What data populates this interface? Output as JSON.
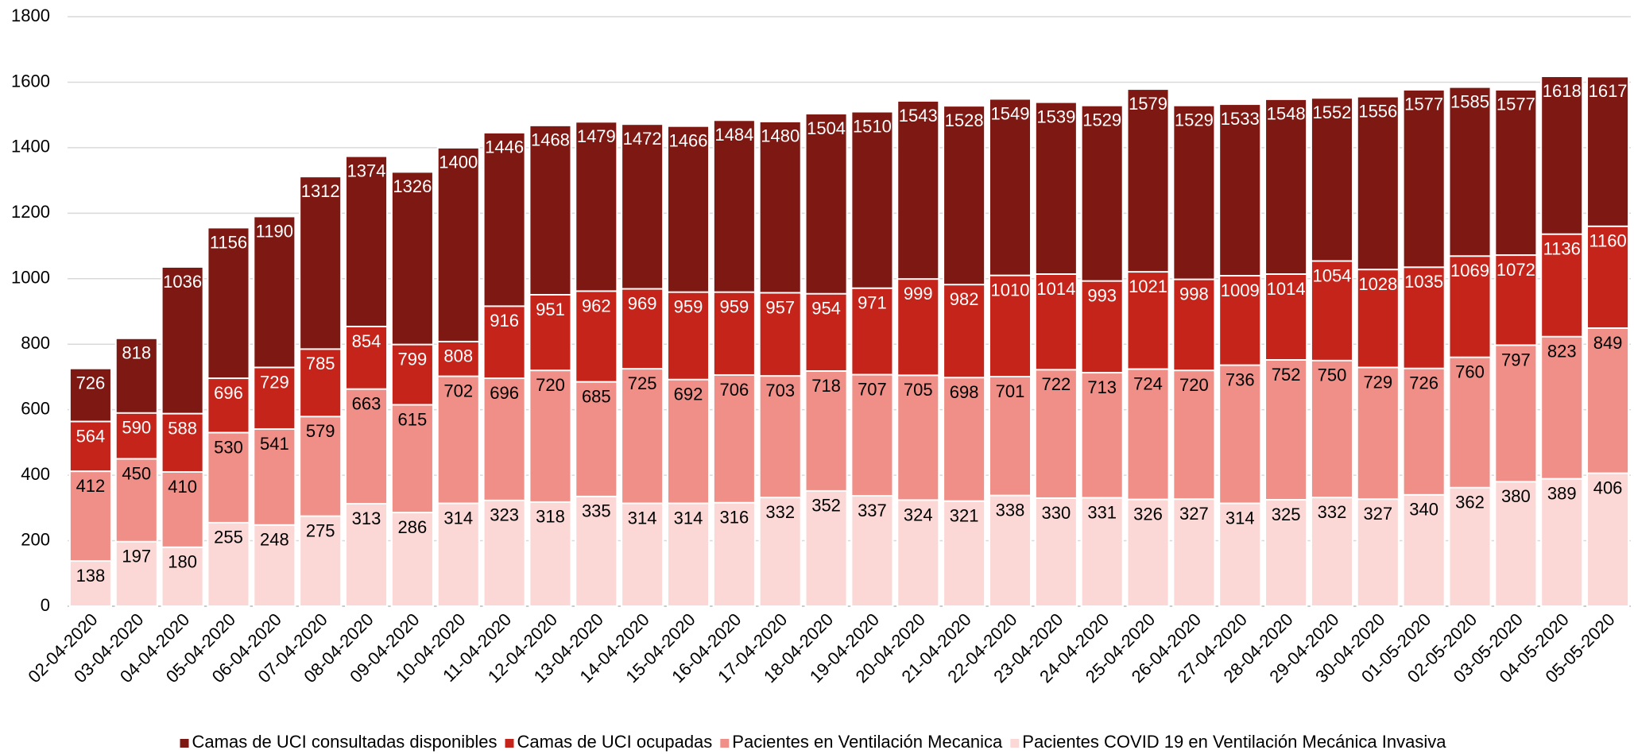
{
  "chart_data": {
    "type": "bar",
    "overlap": true,
    "categories": [
      "02-04-2020",
      "03-04-2020",
      "04-04-2020",
      "05-04-2020",
      "06-04-2020",
      "07-04-2020",
      "08-04-2020",
      "09-04-2020",
      "10-04-2020",
      "11-04-2020",
      "12-04-2020",
      "13-04-2020",
      "14-04-2020",
      "15-04-2020",
      "16-04-2020",
      "17-04-2020",
      "18-04-2020",
      "19-04-2020",
      "20-04-2020",
      "21-04-2020",
      "22-04-2020",
      "23-04-2020",
      "24-04-2020",
      "25-04-2020",
      "26-04-2020",
      "27-04-2020",
      "28-04-2020",
      "29-04-2020",
      "30-04-2020",
      "01-05-2020",
      "02-05-2020",
      "03-05-2020",
      "04-05-2020",
      "05-05-2020"
    ],
    "series": [
      {
        "name": "Camas de UCI consultadas disponibles",
        "color": "#7d1812",
        "label_color": "#ffffff",
        "values": [
          726,
          818,
          1036,
          1156,
          1190,
          1312,
          1374,
          1326,
          1400,
          1446,
          1468,
          1479,
          1472,
          1466,
          1484,
          1480,
          1504,
          1510,
          1543,
          1528,
          1549,
          1539,
          1529,
          1579,
          1529,
          1533,
          1548,
          1552,
          1556,
          1577,
          1585,
          1577,
          1618,
          1617
        ]
      },
      {
        "name": "Camas de UCI ocupadas",
        "color": "#c5241b",
        "label_color": "#ffffff",
        "values": [
          564,
          590,
          588,
          696,
          729,
          785,
          854,
          799,
          808,
          916,
          951,
          962,
          969,
          959,
          959,
          957,
          954,
          971,
          999,
          982,
          1010,
          1014,
          993,
          1021,
          998,
          1009,
          1014,
          1054,
          1028,
          1035,
          1069,
          1072,
          1136,
          1160
        ]
      },
      {
        "name": "Pacientes en Ventilación Mecanica",
        "color": "#ef8f87",
        "label_color": "#000000",
        "values": [
          412,
          450,
          410,
          530,
          541,
          579,
          663,
          615,
          702,
          696,
          720,
          685,
          725,
          692,
          706,
          703,
          718,
          707,
          705,
          698,
          701,
          722,
          713,
          724,
          720,
          736,
          752,
          750,
          729,
          726,
          760,
          797,
          823,
          849
        ]
      },
      {
        "name": "Pacientes COVID 19 en Ventilación Mecánica Invasiva",
        "color": "#fbd8d6",
        "label_color": "#000000",
        "values": [
          138,
          197,
          180,
          255,
          248,
          275,
          313,
          286,
          314,
          323,
          318,
          335,
          314,
          314,
          316,
          332,
          352,
          337,
          324,
          321,
          338,
          330,
          331,
          326,
          327,
          314,
          325,
          332,
          327,
          340,
          362,
          380,
          389,
          406
        ]
      }
    ],
    "ylim": [
      0,
      1800
    ],
    "yticks": [
      0,
      200,
      400,
      600,
      800,
      1000,
      1200,
      1400,
      1600,
      1800
    ],
    "grid": true,
    "legend": "bottom"
  }
}
